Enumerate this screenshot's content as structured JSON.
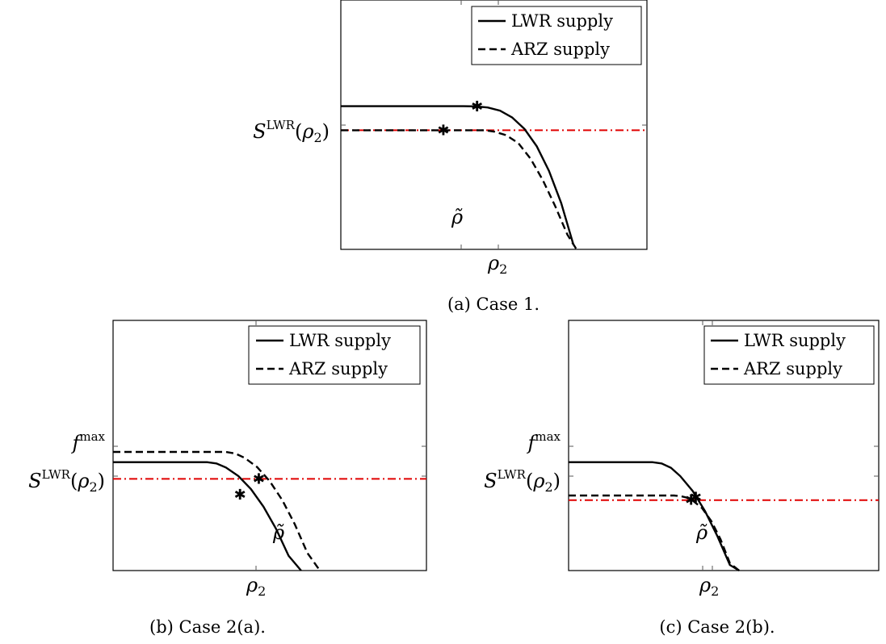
{
  "chart_data": [
    {
      "id": "case1",
      "type": "line",
      "caption": "(a) Case 1.",
      "xlabel": "ρ2",
      "legend": {
        "position": "top-right",
        "entries": [
          "LWR supply",
          "ARZ supply"
        ]
      },
      "ytick_labels": [
        "S^LWR(ρ2)"
      ],
      "x_tick_labels": [
        "ρ̃"
      ],
      "series": [
        {
          "name": "LWR supply",
          "style": "solid",
          "x": [
            0,
            0.4,
            0.44,
            0.48,
            0.52,
            0.56,
            0.6,
            0.64,
            0.68,
            0.72,
            0.76
          ],
          "y": [
            0.775,
            0.775,
            0.774,
            0.768,
            0.751,
            0.714,
            0.652,
            0.558,
            0.425,
            0.25,
            0.025
          ]
        },
        {
          "name": "ARZ supply",
          "style": "dashed",
          "x": [
            0,
            0.47,
            0.5,
            0.54,
            0.58,
            0.62,
            0.66,
            0.7,
            0.74,
            0.77
          ],
          "y": [
            0.645,
            0.645,
            0.638,
            0.618,
            0.575,
            0.49,
            0.375,
            0.235,
            0.08,
            -0.05
          ]
        }
      ],
      "reference_line": {
        "style": "dash-dot",
        "color": "#e00000",
        "y": 0.645
      },
      "markers": [
        {
          "x": 0.445,
          "y": 0.774
        },
        {
          "x": 0.335,
          "y": 0.645
        }
      ],
      "xlim": [
        0,
        1
      ],
      "ylim": [
        0,
        1.35
      ]
    },
    {
      "id": "case2a",
      "type": "line",
      "caption": "(b) Case 2(a).",
      "xlabel": "ρ2",
      "legend": {
        "position": "top-right",
        "entries": [
          "LWR supply",
          "ARZ supply"
        ]
      },
      "ytick_labels": [
        "f^max",
        "S^LWR(ρ2)"
      ],
      "x_tick_labels": [
        "ρ̃"
      ],
      "series": [
        {
          "name": "LWR supply",
          "style": "solid",
          "x": [
            0,
            0.3,
            0.33,
            0.36,
            0.4,
            0.44,
            0.48,
            0.52,
            0.56,
            0.6
          ],
          "y": [
            0.585,
            0.585,
            0.578,
            0.556,
            0.51,
            0.44,
            0.345,
            0.225,
            0.08,
            -0.08
          ]
        },
        {
          "name": "ARZ supply",
          "style": "dashed",
          "x": [
            0,
            0.36,
            0.39,
            0.42,
            0.46,
            0.5,
            0.54,
            0.58,
            0.62,
            0.66
          ],
          "y": [
            0.64,
            0.64,
            0.632,
            0.608,
            0.558,
            0.482,
            0.38,
            0.25,
            0.095,
            -0.08
          ]
        }
      ],
      "reference_line": {
        "style": "dash-dot",
        "color": "#e00000",
        "y": 0.495
      },
      "markers": [
        {
          "x": 0.405,
          "y": 0.41
        },
        {
          "x": 0.465,
          "y": 0.495
        }
      ],
      "xlim": [
        0,
        1
      ],
      "ylim": [
        0,
        1.35
      ]
    },
    {
      "id": "case2b",
      "type": "line",
      "caption": "(c) Case 2(b).",
      "xlabel": "ρ2",
      "legend": {
        "position": "top-right",
        "entries": [
          "LWR supply",
          "ARZ supply"
        ]
      },
      "ytick_labels": [
        "f^max",
        "S^LWR(ρ2)"
      ],
      "x_tick_labels": [
        "ρ̃"
      ],
      "series": [
        {
          "name": "LWR supply",
          "style": "solid",
          "x": [
            0,
            0.27,
            0.3,
            0.33,
            0.36,
            0.4,
            0.44,
            0.48,
            0.52,
            0.55
          ],
          "y": [
            0.585,
            0.585,
            0.578,
            0.555,
            0.51,
            0.43,
            0.32,
            0.185,
            0.03,
            -0.08
          ]
        },
        {
          "name": "ARZ supply",
          "style": "dashed",
          "x": [
            0,
            0.34,
            0.36,
            0.38,
            0.4,
            0.43,
            0.46,
            0.49,
            0.52,
            0.55
          ],
          "y": [
            0.405,
            0.405,
            0.402,
            0.394,
            0.378,
            0.338,
            0.268,
            0.168,
            0.04,
            -0.08
          ]
        }
      ],
      "reference_line": {
        "style": "dash-dot",
        "color": "#e00000",
        "y": 0.38
      },
      "markers": [
        {
          "x": 0.395,
          "y": 0.38
        },
        {
          "x": 0.41,
          "y": 0.395
        }
      ],
      "xlim": [
        0,
        1
      ],
      "ylim": [
        0,
        1.35
      ]
    }
  ]
}
